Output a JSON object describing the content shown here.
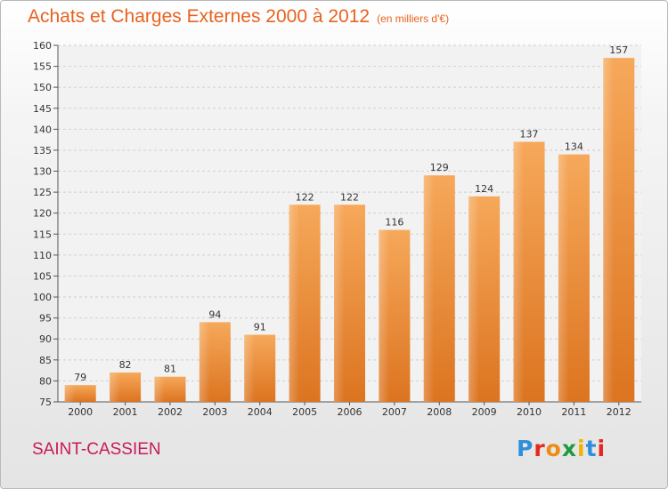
{
  "title": "Achats et Charges Externes 2000 à 2012",
  "subtitle": "(en milliers d'€)",
  "city": "SAINT-CASSIEN",
  "logo": {
    "letters": [
      "P",
      "r",
      "o",
      "x",
      "i",
      "t",
      "i"
    ],
    "colors": [
      "#2f8fd8",
      "#e6261f",
      "#f08a12",
      "#1f9b3c",
      "#f0b400",
      "#2f8fd8",
      "#e6261f"
    ]
  },
  "chart_data": {
    "type": "bar",
    "title": "Achats et Charges Externes 2000 à 2012",
    "subtitle": "(en milliers d'€)",
    "categories": [
      "2000",
      "2001",
      "2002",
      "2003",
      "2004",
      "2005",
      "2006",
      "2007",
      "2008",
      "2009",
      "2010",
      "2011",
      "2012"
    ],
    "values": [
      79,
      82,
      81,
      94,
      91,
      122,
      122,
      116,
      129,
      124,
      137,
      134,
      157
    ],
    "ylim": [
      75,
      160
    ],
    "yticks": [
      75,
      80,
      85,
      90,
      95,
      100,
      105,
      110,
      115,
      120,
      125,
      130,
      135,
      140,
      145,
      150,
      155,
      160
    ],
    "grid": true,
    "bar_color": "#f0882e"
  }
}
